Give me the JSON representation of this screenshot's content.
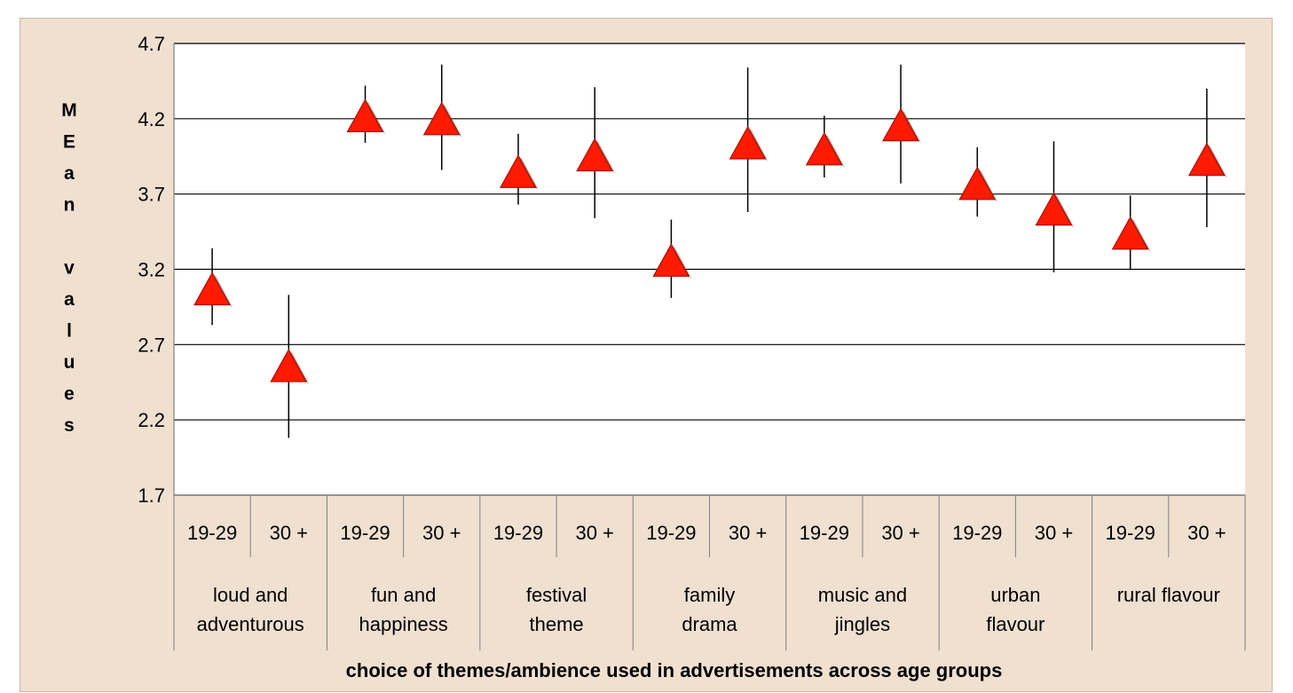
{
  "chart_data": {
    "type": "scatter",
    "title": "",
    "xlabel": "choice of themes/ambience used in advertisements across age groups",
    "ylabel": "MEan values",
    "ylabel_letters": [
      "M",
      "E",
      "a",
      "n",
      "",
      "v",
      "a",
      "l",
      "u",
      "e",
      "s"
    ],
    "ylim": [
      1.7,
      4.7
    ],
    "yticks": [
      "1.7",
      "2.2",
      "2.7",
      "3.2",
      "3.7",
      "4.2",
      "4.7"
    ],
    "grid": true,
    "legend": "none",
    "marker": "triangle",
    "colors": {
      "marker_fill": "#ff1a00",
      "marker_edge": "#b01000",
      "error_bar": "#000000",
      "plot_bg": "#ffffff",
      "frame_bg": "#efe0d0"
    },
    "groups": [
      {
        "name": "loud and adventurous",
        "label_lines": [
          "loud and",
          "adventurous"
        ]
      },
      {
        "name": "fun and happiness",
        "label_lines": [
          "fun and",
          "happiness"
        ]
      },
      {
        "name": "festival theme",
        "label_lines": [
          "festival",
          "theme"
        ]
      },
      {
        "name": "family drama",
        "label_lines": [
          "family",
          "drama"
        ]
      },
      {
        "name": "music and jingles",
        "label_lines": [
          "music and",
          "jingles"
        ]
      },
      {
        "name": "urban flavour",
        "label_lines": [
          "urban",
          "flavour"
        ]
      },
      {
        "name": "rural flavour",
        "label_lines": [
          "rural flavour"
        ]
      }
    ],
    "categories": [
      "19-29",
      "30 +",
      "19-29",
      "30 +",
      "19-29",
      "30 +",
      "19-29",
      "30 +",
      "19-29",
      "30 +",
      "19-29",
      "30 +",
      "19-29",
      "30 +"
    ],
    "values": [
      3.07,
      2.56,
      4.22,
      4.2,
      3.85,
      3.96,
      3.26,
      4.04,
      4.0,
      4.16,
      3.77,
      3.6,
      3.44,
      3.93
    ],
    "error_low": [
      2.83,
      2.08,
      4.04,
      3.86,
      3.63,
      3.54,
      3.01,
      3.58,
      3.81,
      3.77,
      3.55,
      3.18,
      3.2,
      3.48
    ],
    "error_high": [
      3.34,
      3.03,
      4.42,
      4.56,
      4.1,
      4.41,
      3.53,
      4.54,
      4.22,
      4.56,
      4.01,
      4.05,
      3.69,
      4.4
    ]
  }
}
